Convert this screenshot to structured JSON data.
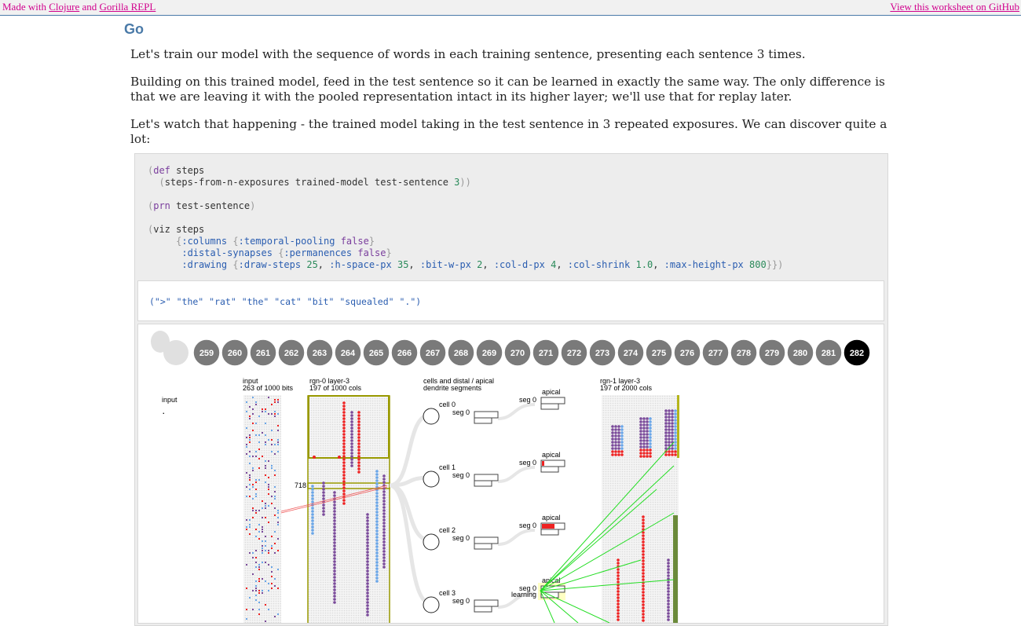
{
  "topbar": {
    "made_with": "Made with",
    "clojure": "Clojure",
    "and": "and",
    "gorilla": "Gorilla REPL",
    "github": "View this worksheet on GitHub"
  },
  "heading": "Go",
  "paragraphs": [
    "Let's train our model with the sequence of words in each training sentence, presenting each sentence 3 times.",
    "Building on this trained model, feed in the test sentence so it can be learned in exactly the same way. The only difference is that we are leaving it with the pooled representation intact in its higher layer; we'll use that for replay later.",
    "Let's watch that happening - the trained model taking in the test sentence in 3 repeated exposures. We can discover quite a lot:"
  ],
  "output_sentence": "(\">\" \"the\" \"rat\" \"the\" \"cat\" \"bit\" \"squealed\" \".\")",
  "timeline": {
    "steps": [
      "259",
      "260",
      "261",
      "262",
      "263",
      "264",
      "265",
      "266",
      "267",
      "268",
      "269",
      "270",
      "271",
      "272",
      "273",
      "274",
      "275",
      "276",
      "277",
      "278",
      "279",
      "280",
      "281",
      "282"
    ],
    "selected": "282"
  },
  "viz": {
    "input_title": "input",
    "input_value": ".",
    "col_input": "input",
    "col_input_sub": "263 of 1000 bits",
    "col_rgn0": "rgn-0 layer-3",
    "col_rgn0_sub": "197 of 1000 cols",
    "col_cells": "cells and distal / apical",
    "col_cells_sub": "dendrite segments",
    "col_rgn1": "rgn-1 layer-3",
    "col_rgn1_sub": "197 of 2000 cols",
    "selected_col": "718",
    "cells": [
      "cell 0",
      "cell 1",
      "cell 2",
      "cell 3"
    ],
    "seg_label": "seg 0",
    "apical_label": "apical",
    "learning_label": "learning"
  }
}
